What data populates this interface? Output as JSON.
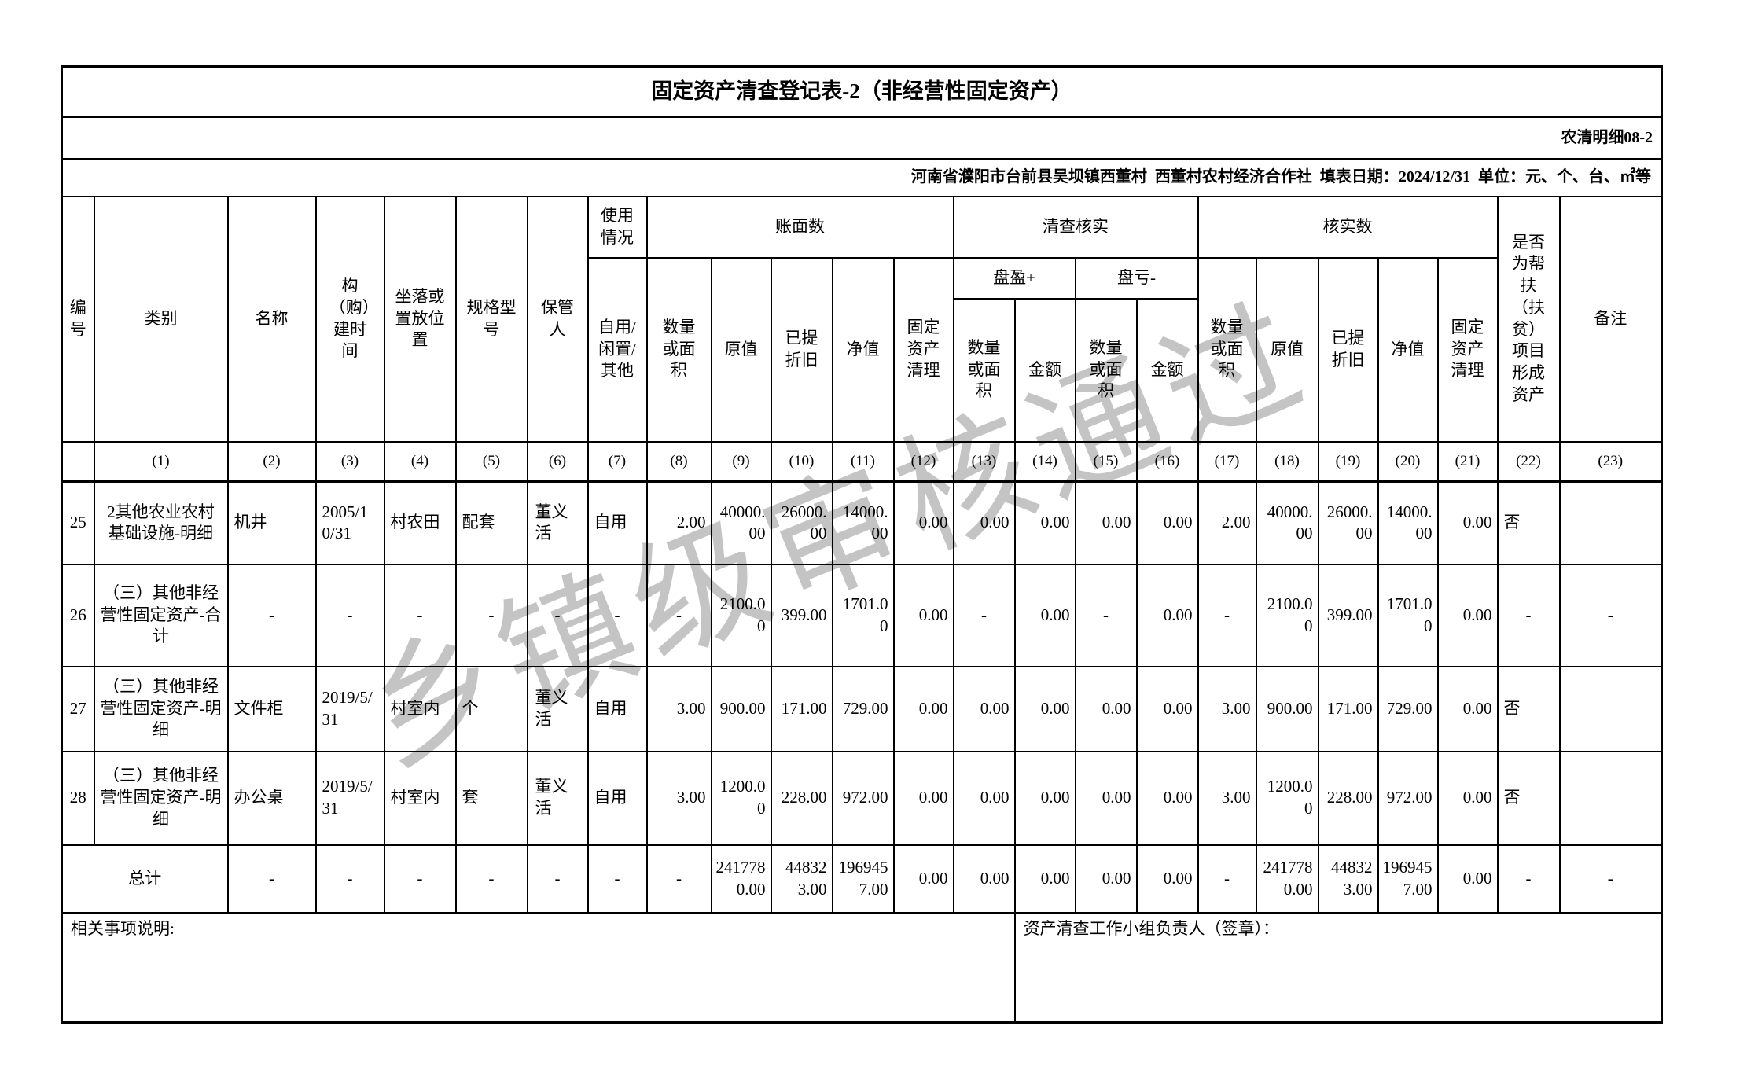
{
  "form": {
    "title": "固定资产清查登记表-2（非经营性固定资产）",
    "code": "农清明细08-2",
    "info_line": "河南省濮阳市台前县吴坝镇西董村  西董村农村经济合作社  填表日期：2024/12/31  单位：元、个、台、㎡等"
  },
  "watermark": "乡镇级审核通过",
  "columns": {
    "no": "编号",
    "category": "类别",
    "name": "名称",
    "build_time": "构（购）建时间",
    "location": "坐落或置放位置",
    "spec": "规格型号",
    "keeper": "保管人",
    "usage_group": "使用情况",
    "usage_leaf": "自用/闲置/其他",
    "book_group": "账面数",
    "verify_group": "清查核实",
    "verified_group": "核实数",
    "surplus": "盘盈+",
    "loss": "盘亏-",
    "qty": "数量或面积",
    "orig_value": "原值",
    "depreciation": "已提折旧",
    "net_value": "净值",
    "disposal": "固定资产清理",
    "amount": "金额",
    "poverty": "是否为帮扶（扶贫）项目形成资产",
    "remark": "备注"
  },
  "col_numbers": [
    "",
    "(1)",
    "(2)",
    "(3)",
    "(4)",
    "(5)",
    "(6)",
    "(7)",
    "(8)",
    "(9)",
    "(10)",
    "(11)",
    "(12)",
    "(13)",
    "(14)",
    "(15)",
    "(16)",
    "(17)",
    "(18)",
    "(19)",
    "(20)",
    "(21)",
    "(22)",
    "(23)"
  ],
  "rows": [
    [
      "25",
      "2其他农业农村基础设施-明细",
      "机井",
      "2005/10/31",
      "村农田",
      "配套",
      "董义活",
      "自用",
      "2.00",
      "40000.00",
      "26000.00",
      "14000.00",
      "0.00",
      "0.00",
      "0.00",
      "0.00",
      "0.00",
      "2.00",
      "40000.00",
      "26000.00",
      "14000.00",
      "0.00",
      "否",
      ""
    ],
    [
      "26",
      "（三）其他非经营性固定资产-合计",
      "-",
      "-",
      "-",
      "-",
      "-",
      "-",
      "-",
      "2100.00",
      "399.00",
      "1701.00",
      "0.00",
      "-",
      "0.00",
      "-",
      "0.00",
      "-",
      "2100.00",
      "399.00",
      "1701.00",
      "0.00",
      "-",
      "-"
    ],
    [
      "27",
      "（三）其他非经营性固定资产-明细",
      "文件柜",
      "2019/5/31",
      "村室内",
      "个",
      "董义活",
      "自用",
      "3.00",
      "900.00",
      "171.00",
      "729.00",
      "0.00",
      "0.00",
      "0.00",
      "0.00",
      "0.00",
      "3.00",
      "900.00",
      "171.00",
      "729.00",
      "0.00",
      "否",
      ""
    ],
    [
      "28",
      "（三）其他非经营性固定资产-明细",
      "办公桌",
      "2019/5/31",
      "村室内",
      "套",
      "董义活",
      "自用",
      "3.00",
      "1200.00",
      "228.00",
      "972.00",
      "0.00",
      "0.00",
      "0.00",
      "0.00",
      "0.00",
      "3.00",
      "1200.00",
      "228.00",
      "972.00",
      "0.00",
      "否",
      ""
    ]
  ],
  "total_row": {
    "label": "总计",
    "cells": [
      "-",
      "-",
      "-",
      "-",
      "-",
      "-",
      "-",
      "2417780.00",
      "448323.00",
      "1969457.00",
      "0.00",
      "0.00",
      "0.00",
      "0.00",
      "0.00",
      "-",
      "2417780.00",
      "448323.00",
      "1969457.00",
      "0.00",
      "-",
      "-"
    ]
  },
  "footer": {
    "notes_label": "相关事项说明:",
    "sign_label": "资产清查工作小组负责人（签章）："
  }
}
